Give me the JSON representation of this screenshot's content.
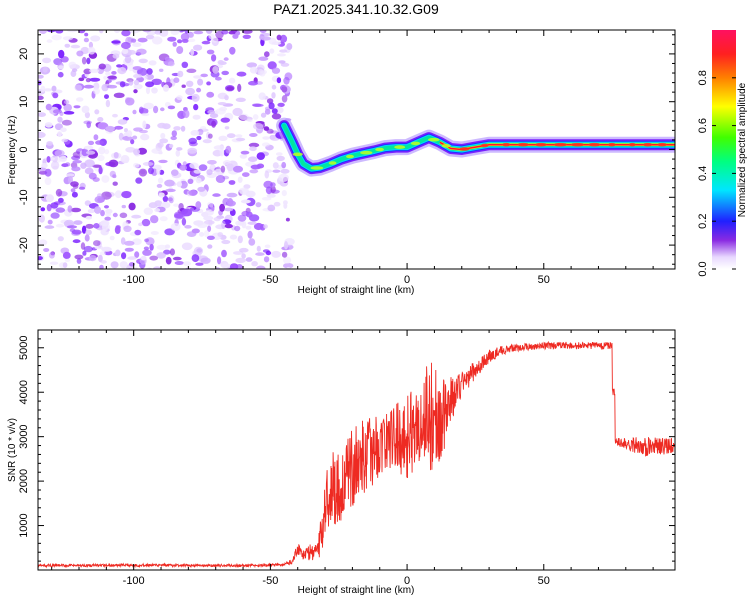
{
  "title": "PAZ1.2025.341.10.32.G09",
  "colors": {
    "snr_line": "#ee2a22",
    "ridge_low": "#7a1fff",
    "ridge_mid": "#00e6a0",
    "ridge_high": "#ff1030",
    "noise": "#8a2be2"
  },
  "chart_data": [
    {
      "type": "heatmap",
      "title": "",
      "xlabel": "Height of straight line (km)",
      "ylabel": "Frequency (Hz)",
      "xlim": [
        -135,
        98
      ],
      "ylim": [
        -25,
        25
      ],
      "xticks": [
        "-100",
        "-50",
        "0",
        "50"
      ],
      "yticks": [
        "20",
        "10",
        "0",
        "-10",
        "-20"
      ],
      "noise_region_x": [
        -135,
        -45
      ],
      "ridge": {
        "x": [
          -45,
          -42,
          -40,
          -38,
          -35,
          -32,
          -28,
          -24,
          -20,
          -16,
          -12,
          -8,
          -4,
          0,
          4,
          8,
          12,
          16,
          20,
          25,
          30,
          40,
          50,
          60,
          70,
          80,
          90,
          98
        ],
        "y": [
          5,
          1.5,
          -1,
          -3,
          -4,
          -3.8,
          -3,
          -2,
          -1.3,
          -0.8,
          -0.3,
          0.3,
          0.5,
          0.5,
          1.5,
          2.5,
          1.5,
          0.2,
          0,
          0.5,
          1,
          1,
          1,
          1,
          1,
          1,
          1,
          1
        ]
      },
      "colorbar": {
        "label": "Normalized spectral amplitude",
        "range": [
          0,
          1
        ],
        "ticks": [
          "0.0",
          "0.2",
          "0.4",
          "0.6",
          "0.8"
        ]
      }
    },
    {
      "type": "line",
      "title": "",
      "xlabel": "Height of straight line (km)",
      "ylabel": "SNR (10 * v/v)",
      "xlim": [
        -135,
        98
      ],
      "ylim": [
        0,
        5400
      ],
      "xticks": [
        "-100",
        "-50",
        "0",
        "50"
      ],
      "yticks": [
        "1000",
        "2000",
        "3000",
        "4000",
        "5000"
      ],
      "series": [
        {
          "name": "SNR",
          "x": [
            -135,
            -120,
            -100,
            -80,
            -60,
            -50,
            -45,
            -42,
            -40,
            -38,
            -35,
            -32,
            -30,
            -27,
            -25,
            -22,
            -20,
            -17,
            -15,
            -12,
            -10,
            -5,
            0,
            5,
            8,
            10,
            12,
            15,
            18,
            20,
            25,
            30,
            35,
            40,
            50,
            60,
            70,
            75,
            76,
            80,
            85,
            90,
            95,
            98
          ],
          "values": [
            100,
            100,
            110,
            100,
            100,
            110,
            120,
            200,
            500,
            350,
            400,
            500,
            1500,
            1900,
            1800,
            2100,
            2300,
            2500,
            2600,
            2700,
            2800,
            3000,
            3000,
            3300,
            3500,
            3500,
            3300,
            3700,
            4000,
            4200,
            4500,
            4800,
            4950,
            5000,
            5050,
            5050,
            5050,
            5050,
            2900,
            2850,
            2800,
            2750,
            2800,
            2800
          ],
          "noise": [
            30,
            30,
            30,
            30,
            30,
            30,
            30,
            60,
            150,
            150,
            200,
            400,
            700,
            900,
            900,
            800,
            900,
            900,
            800,
            800,
            700,
            700,
            1000,
            900,
            1500,
            1200,
            900,
            700,
            400,
            300,
            200,
            150,
            100,
            80,
            80,
            80,
            80,
            80,
            80,
            150,
            200,
            250,
            200,
            150
          ]
        }
      ]
    }
  ]
}
